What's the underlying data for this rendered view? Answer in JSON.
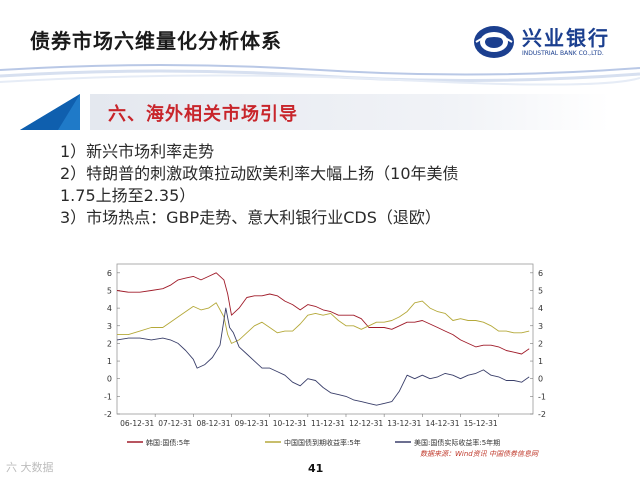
{
  "slide": {
    "title": "债券市场六维量化分析体系",
    "section_title": "六、海外相关市场引导",
    "bullets": [
      "1）新兴市场利率走势",
      "2）特朗普的刺激政策拉动欧美利率大幅上扬（10年美债",
      "1.75上扬至2.35）",
      "3）市场热点：GBP走势、意大利银行业CDS（退欧）"
    ],
    "page_number": "41",
    "watermark": "六 大数据",
    "logo_cn": "兴业银行",
    "logo_en": "INDUSTRIAL BANK CO.,LTD."
  },
  "colors": {
    "section_red": "#c8252b",
    "accent_blue": "#1f7ac8",
    "logo_blue": "#1b3f8f",
    "series_red": "#a01c2a",
    "series_olive": "#b5a93a",
    "series_navy": "#3a3f6a"
  },
  "chart_data": {
    "type": "line",
    "y_left_ticks": [
      "6",
      "5",
      "4",
      "3",
      "2",
      "1",
      "0",
      "-1",
      "-2"
    ],
    "y_right_ticks": [
      "6",
      "5",
      "4",
      "3",
      "2",
      "1",
      "0",
      "-1",
      "-2"
    ],
    "ylim": [
      -2,
      6.5
    ],
    "x_ticks": [
      "06-12-31",
      "07-12-31",
      "08-12-31",
      "09-12-31",
      "10-12-31",
      "11-12-31",
      "12-12-31",
      "13-12-31",
      "14-12-31",
      "15-12-31"
    ],
    "x_domain": [
      2006.0,
      2016.9
    ],
    "legend": [
      "韩国:国债:5年",
      "中国国债到期收益率:5年",
      "美国:国债实际收益率:5年期"
    ],
    "source": "数据来源：Wind资讯  中国债券信息网",
    "series": [
      {
        "name": "韩国:国债:5年",
        "color": "#a01c2a",
        "points": [
          [
            2006.0,
            5.0
          ],
          [
            2006.3,
            4.9
          ],
          [
            2006.6,
            4.9
          ],
          [
            2006.9,
            5.0
          ],
          [
            2007.2,
            5.1
          ],
          [
            2007.4,
            5.3
          ],
          [
            2007.6,
            5.6
          ],
          [
            2007.8,
            5.7
          ],
          [
            2008.0,
            5.8
          ],
          [
            2008.2,
            5.6
          ],
          [
            2008.4,
            5.8
          ],
          [
            2008.6,
            6.0
          ],
          [
            2008.8,
            5.6
          ],
          [
            2008.9,
            4.8
          ],
          [
            2009.0,
            3.6
          ],
          [
            2009.2,
            4.0
          ],
          [
            2009.4,
            4.6
          ],
          [
            2009.6,
            4.7
          ],
          [
            2009.8,
            4.7
          ],
          [
            2010.0,
            4.8
          ],
          [
            2010.2,
            4.7
          ],
          [
            2010.4,
            4.4
          ],
          [
            2010.6,
            4.2
          ],
          [
            2010.8,
            3.9
          ],
          [
            2011.0,
            4.2
          ],
          [
            2011.2,
            4.1
          ],
          [
            2011.4,
            3.9
          ],
          [
            2011.6,
            3.8
          ],
          [
            2011.8,
            3.6
          ],
          [
            2012.0,
            3.6
          ],
          [
            2012.2,
            3.6
          ],
          [
            2012.4,
            3.4
          ],
          [
            2012.6,
            2.9
          ],
          [
            2012.8,
            2.9
          ],
          [
            2013.0,
            2.9
          ],
          [
            2013.2,
            2.8
          ],
          [
            2013.4,
            3.0
          ],
          [
            2013.6,
            3.2
          ],
          [
            2013.8,
            3.2
          ],
          [
            2014.0,
            3.3
          ],
          [
            2014.2,
            3.1
          ],
          [
            2014.4,
            2.9
          ],
          [
            2014.6,
            2.7
          ],
          [
            2014.8,
            2.5
          ],
          [
            2015.0,
            2.2
          ],
          [
            2015.2,
            2.0
          ],
          [
            2015.4,
            1.8
          ],
          [
            2015.6,
            1.9
          ],
          [
            2015.8,
            1.9
          ],
          [
            2016.0,
            1.8
          ],
          [
            2016.2,
            1.6
          ],
          [
            2016.4,
            1.5
          ],
          [
            2016.6,
            1.4
          ],
          [
            2016.8,
            1.7
          ]
        ]
      },
      {
        "name": "中国国债到期收益率:5年",
        "color": "#b5a93a",
        "points": [
          [
            2006.0,
            2.5
          ],
          [
            2006.3,
            2.5
          ],
          [
            2006.6,
            2.7
          ],
          [
            2006.9,
            2.9
          ],
          [
            2007.2,
            2.9
          ],
          [
            2007.4,
            3.2
          ],
          [
            2007.6,
            3.5
          ],
          [
            2007.8,
            3.8
          ],
          [
            2008.0,
            4.1
          ],
          [
            2008.2,
            3.9
          ],
          [
            2008.4,
            4.0
          ],
          [
            2008.6,
            4.3
          ],
          [
            2008.8,
            3.5
          ],
          [
            2008.9,
            2.5
          ],
          [
            2009.0,
            2.0
          ],
          [
            2009.2,
            2.2
          ],
          [
            2009.4,
            2.6
          ],
          [
            2009.6,
            3.0
          ],
          [
            2009.8,
            3.2
          ],
          [
            2010.0,
            2.9
          ],
          [
            2010.2,
            2.6
          ],
          [
            2010.4,
            2.7
          ],
          [
            2010.6,
            2.7
          ],
          [
            2010.8,
            3.1
          ],
          [
            2011.0,
            3.6
          ],
          [
            2011.2,
            3.7
          ],
          [
            2011.4,
            3.6
          ],
          [
            2011.6,
            3.7
          ],
          [
            2011.8,
            3.3
          ],
          [
            2012.0,
            3.0
          ],
          [
            2012.2,
            3.0
          ],
          [
            2012.4,
            2.8
          ],
          [
            2012.6,
            3.0
          ],
          [
            2012.8,
            3.2
          ],
          [
            2013.0,
            3.2
          ],
          [
            2013.2,
            3.3
          ],
          [
            2013.4,
            3.5
          ],
          [
            2013.6,
            3.8
          ],
          [
            2013.8,
            4.3
          ],
          [
            2014.0,
            4.4
          ],
          [
            2014.2,
            4.0
          ],
          [
            2014.4,
            3.8
          ],
          [
            2014.6,
            3.7
          ],
          [
            2014.8,
            3.3
          ],
          [
            2015.0,
            3.4
          ],
          [
            2015.2,
            3.3
          ],
          [
            2015.4,
            3.3
          ],
          [
            2015.6,
            3.2
          ],
          [
            2015.8,
            3.0
          ],
          [
            2016.0,
            2.7
          ],
          [
            2016.2,
            2.7
          ],
          [
            2016.4,
            2.6
          ],
          [
            2016.6,
            2.6
          ],
          [
            2016.8,
            2.7
          ]
        ]
      },
      {
        "name": "美国:国债实际收益率:5年期",
        "color": "#3a3f6a",
        "points": [
          [
            2006.0,
            2.2
          ],
          [
            2006.3,
            2.3
          ],
          [
            2006.6,
            2.3
          ],
          [
            2006.9,
            2.2
          ],
          [
            2007.2,
            2.3
          ],
          [
            2007.4,
            2.2
          ],
          [
            2007.6,
            2.0
          ],
          [
            2007.8,
            1.6
          ],
          [
            2008.0,
            1.1
          ],
          [
            2008.1,
            0.6
          ],
          [
            2008.3,
            0.8
          ],
          [
            2008.5,
            1.2
          ],
          [
            2008.7,
            1.9
          ],
          [
            2008.85,
            4.0
          ],
          [
            2008.95,
            2.9
          ],
          [
            2009.05,
            2.6
          ],
          [
            2009.2,
            1.8
          ],
          [
            2009.4,
            1.4
          ],
          [
            2009.6,
            1.0
          ],
          [
            2009.8,
            0.6
          ],
          [
            2010.0,
            0.6
          ],
          [
            2010.2,
            0.4
          ],
          [
            2010.4,
            0.2
          ],
          [
            2010.6,
            -0.2
          ],
          [
            2010.8,
            -0.4
          ],
          [
            2011.0,
            0.0
          ],
          [
            2011.2,
            -0.1
          ],
          [
            2011.4,
            -0.5
          ],
          [
            2011.6,
            -0.8
          ],
          [
            2011.8,
            -0.9
          ],
          [
            2012.0,
            -1.0
          ],
          [
            2012.2,
            -1.2
          ],
          [
            2012.4,
            -1.3
          ],
          [
            2012.6,
            -1.4
          ],
          [
            2012.8,
            -1.5
          ],
          [
            2013.0,
            -1.4
          ],
          [
            2013.2,
            -1.3
          ],
          [
            2013.4,
            -0.7
          ],
          [
            2013.6,
            0.2
          ],
          [
            2013.8,
            0.0
          ],
          [
            2014.0,
            0.2
          ],
          [
            2014.2,
            0.0
          ],
          [
            2014.4,
            0.1
          ],
          [
            2014.6,
            0.3
          ],
          [
            2014.8,
            0.2
          ],
          [
            2015.0,
            0.0
          ],
          [
            2015.2,
            0.2
          ],
          [
            2015.4,
            0.3
          ],
          [
            2015.6,
            0.5
          ],
          [
            2015.8,
            0.2
          ],
          [
            2016.0,
            0.1
          ],
          [
            2016.2,
            -0.1
          ],
          [
            2016.4,
            -0.1
          ],
          [
            2016.6,
            -0.2
          ],
          [
            2016.8,
            0.1
          ]
        ]
      }
    ]
  }
}
